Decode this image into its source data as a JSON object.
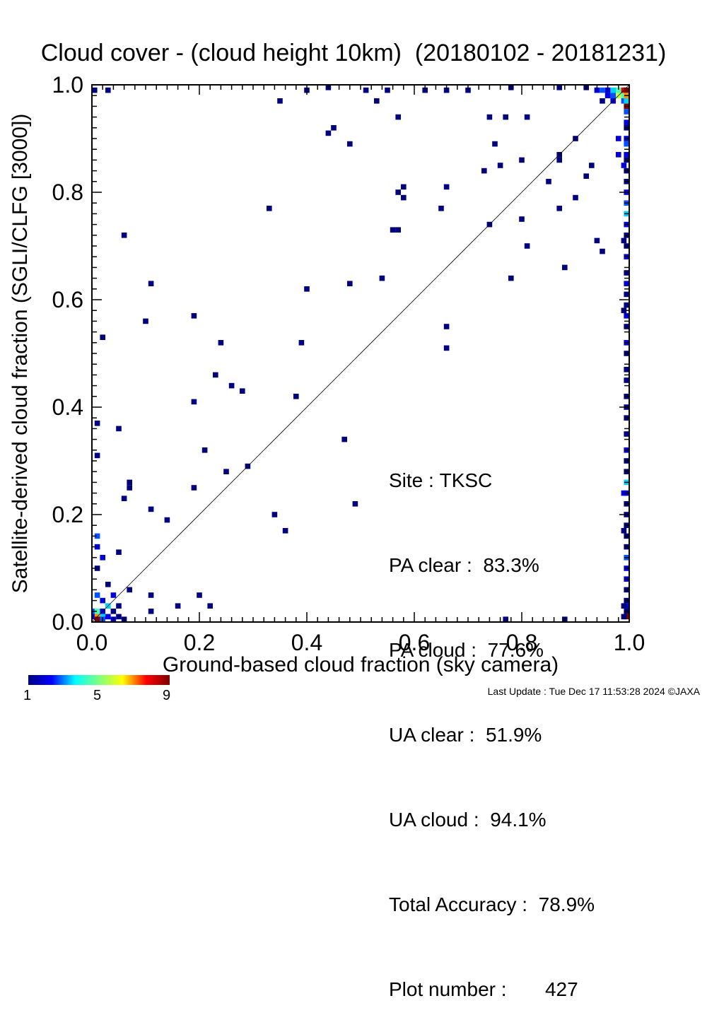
{
  "chart_data": {
    "type": "heatmap",
    "title": "Cloud cover - (cloud height 10km)  (20180102 - 20181231)",
    "xlabel": "Ground-based cloud fraction (sky camera)",
    "ylabel": "Satellite-derived cloud fraction (SGLI/CLFG [3000])",
    "xlim": [
      0.0,
      1.0
    ],
    "ylim": [
      0.0,
      1.0
    ],
    "x_ticks": [
      "0.0",
      "0.2",
      "0.4",
      "0.6",
      "0.8",
      "1.0"
    ],
    "y_ticks": [
      "0.0",
      "0.2",
      "0.4",
      "0.6",
      "0.8",
      "1.0"
    ],
    "reference_line": "1:1 diagonal",
    "colorbar": {
      "min": 1,
      "max": 9,
      "tick_labels": [
        "1",
        "5",
        "9"
      ]
    },
    "points": [
      [
        0.0,
        0.99,
        1
      ],
      [
        0.03,
        0.99,
        1
      ],
      [
        0.44,
        1.0,
        1
      ],
      [
        0.51,
        0.99,
        1
      ],
      [
        0.55,
        0.99,
        1
      ],
      [
        0.62,
        0.99,
        1
      ],
      [
        0.66,
        0.99,
        1
      ],
      [
        0.7,
        0.99,
        1
      ],
      [
        0.78,
        1.0,
        1
      ],
      [
        0.87,
        1.0,
        1
      ],
      [
        0.92,
        1.0,
        1
      ],
      [
        0.4,
        0.99,
        1
      ],
      [
        0.53,
        0.97,
        1
      ],
      [
        0.35,
        0.97,
        1
      ],
      [
        0.57,
        0.94,
        1
      ],
      [
        0.74,
        0.94,
        1
      ],
      [
        0.77,
        0.94,
        1
      ],
      [
        0.81,
        0.94,
        1
      ],
      [
        0.45,
        0.92,
        1
      ],
      [
        0.44,
        0.91,
        1
      ],
      [
        0.48,
        0.89,
        1
      ],
      [
        0.75,
        0.89,
        1
      ],
      [
        0.87,
        0.86,
        1
      ],
      [
        0.87,
        0.87,
        1
      ],
      [
        0.8,
        0.86,
        1
      ],
      [
        0.76,
        0.85,
        1
      ],
      [
        0.73,
        0.84,
        1
      ],
      [
        0.9,
        0.9,
        1
      ],
      [
        0.93,
        0.85,
        1
      ],
      [
        0.92,
        0.83,
        1
      ],
      [
        0.85,
        0.82,
        1
      ],
      [
        0.57,
        0.8,
        1
      ],
      [
        0.58,
        0.81,
        1
      ],
      [
        0.58,
        0.79,
        1
      ],
      [
        0.66,
        0.81,
        1
      ],
      [
        0.65,
        0.77,
        1
      ],
      [
        0.9,
        0.79,
        1
      ],
      [
        0.87,
        0.77,
        1
      ],
      [
        0.33,
        0.77,
        1
      ],
      [
        0.56,
        0.73,
        1
      ],
      [
        0.57,
        0.73,
        1
      ],
      [
        0.74,
        0.74,
        1
      ],
      [
        0.8,
        0.75,
        1
      ],
      [
        0.06,
        0.72,
        1
      ],
      [
        0.81,
        0.7,
        1
      ],
      [
        0.94,
        0.71,
        1
      ],
      [
        0.95,
        0.69,
        1
      ],
      [
        0.88,
        0.66,
        1
      ],
      [
        0.11,
        0.63,
        1
      ],
      [
        0.48,
        0.63,
        1
      ],
      [
        0.78,
        0.64,
        1
      ],
      [
        0.54,
        0.64,
        1
      ],
      [
        0.4,
        0.62,
        1
      ],
      [
        0.19,
        0.57,
        1
      ],
      [
        0.1,
        0.56,
        1
      ],
      [
        0.66,
        0.55,
        1
      ],
      [
        0.02,
        0.53,
        1
      ],
      [
        0.24,
        0.52,
        1
      ],
      [
        0.39,
        0.52,
        1
      ],
      [
        0.66,
        0.51,
        1
      ],
      [
        0.23,
        0.46,
        1
      ],
      [
        0.26,
        0.44,
        1
      ],
      [
        0.28,
        0.43,
        1
      ],
      [
        0.38,
        0.42,
        1
      ],
      [
        0.19,
        0.41,
        1
      ],
      [
        0.01,
        0.37,
        1
      ],
      [
        0.05,
        0.36,
        1
      ],
      [
        0.47,
        0.34,
        1
      ],
      [
        0.21,
        0.32,
        1
      ],
      [
        0.01,
        0.31,
        1
      ],
      [
        0.29,
        0.29,
        1
      ],
      [
        0.25,
        0.28,
        1
      ],
      [
        0.07,
        0.26,
        1
      ],
      [
        0.07,
        0.25,
        1
      ],
      [
        0.19,
        0.25,
        1
      ],
      [
        0.06,
        0.23,
        1
      ],
      [
        0.49,
        0.22,
        1
      ],
      [
        0.11,
        0.21,
        1
      ],
      [
        0.34,
        0.2,
        1
      ],
      [
        0.14,
        0.19,
        1
      ],
      [
        0.36,
        0.17,
        1
      ],
      [
        0.01,
        0.16,
        3
      ],
      [
        0.01,
        0.14,
        2
      ],
      [
        0.05,
        0.13,
        1
      ],
      [
        0.02,
        0.12,
        2
      ],
      [
        0.01,
        0.1,
        1
      ],
      [
        0.03,
        0.07,
        1
      ],
      [
        0.07,
        0.06,
        1
      ],
      [
        0.11,
        0.05,
        1
      ],
      [
        0.2,
        0.05,
        1
      ],
      [
        0.01,
        0.05,
        3
      ],
      [
        0.04,
        0.05,
        2
      ],
      [
        0.16,
        0.03,
        1
      ],
      [
        0.22,
        0.03,
        1
      ],
      [
        0.11,
        0.02,
        1
      ],
      [
        0.02,
        0.04,
        2
      ],
      [
        0.03,
        0.03,
        4
      ],
      [
        0.05,
        0.03,
        1
      ],
      [
        0.0,
        0.02,
        3
      ],
      [
        0.01,
        0.02,
        5
      ],
      [
        0.02,
        0.02,
        2
      ],
      [
        0.04,
        0.02,
        1
      ],
      [
        0.0,
        0.01,
        2
      ],
      [
        0.01,
        0.01,
        7
      ],
      [
        0.02,
        0.01,
        4
      ],
      [
        0.03,
        0.01,
        2
      ],
      [
        0.05,
        0.01,
        1
      ],
      [
        0.01,
        0.0,
        9
      ],
      [
        0.02,
        0.0,
        3
      ],
      [
        0.04,
        0.0,
        2
      ],
      [
        0.06,
        0.0,
        1
      ],
      [
        0.77,
        0.0,
        1
      ],
      [
        0.88,
        0.0,
        1
      ],
      [
        0.94,
        0.99,
        2
      ],
      [
        0.95,
        0.99,
        3
      ],
      [
        0.96,
        0.99,
        2
      ],
      [
        0.97,
        0.99,
        4
      ],
      [
        0.98,
        0.99,
        5
      ],
      [
        0.99,
        0.99,
        8
      ],
      [
        1.0,
        0.99,
        9
      ],
      [
        0.96,
        0.98,
        2
      ],
      [
        0.97,
        0.98,
        3
      ],
      [
        0.98,
        0.98,
        6
      ],
      [
        0.99,
        0.98,
        5
      ],
      [
        1.0,
        0.98,
        7
      ],
      [
        0.97,
        0.97,
        2
      ],
      [
        0.99,
        0.97,
        3
      ],
      [
        1.0,
        0.97,
        4
      ],
      [
        1.0,
        0.96,
        9
      ],
      [
        1.0,
        0.95,
        3
      ],
      [
        1.0,
        0.93,
        2
      ],
      [
        1.0,
        0.92,
        1
      ],
      [
        1.0,
        0.9,
        2
      ],
      [
        1.0,
        0.89,
        3
      ],
      [
        1.0,
        0.87,
        2
      ],
      [
        1.0,
        0.86,
        1
      ],
      [
        0.99,
        0.85,
        2
      ],
      [
        1.0,
        0.84,
        1
      ],
      [
        1.0,
        0.82,
        1
      ],
      [
        1.0,
        0.8,
        2
      ],
      [
        1.0,
        0.78,
        3
      ],
      [
        1.0,
        0.76,
        4
      ],
      [
        1.0,
        0.74,
        2
      ],
      [
        1.0,
        0.72,
        1
      ],
      [
        1.0,
        0.7,
        1
      ],
      [
        1.0,
        0.68,
        2
      ],
      [
        1.0,
        0.65,
        1
      ],
      [
        1.0,
        0.63,
        2
      ],
      [
        1.0,
        0.61,
        1
      ],
      [
        1.0,
        0.59,
        1
      ],
      [
        1.0,
        0.57,
        2
      ],
      [
        1.0,
        0.55,
        1
      ],
      [
        1.0,
        0.52,
        2
      ],
      [
        1.0,
        0.5,
        1
      ],
      [
        1.0,
        0.47,
        1
      ],
      [
        1.0,
        0.45,
        1
      ],
      [
        1.0,
        0.42,
        1
      ],
      [
        1.0,
        0.4,
        1
      ],
      [
        1.0,
        0.38,
        1
      ],
      [
        1.0,
        0.35,
        1
      ],
      [
        1.0,
        0.32,
        2
      ],
      [
        1.0,
        0.3,
        1
      ],
      [
        1.0,
        0.28,
        1
      ],
      [
        1.0,
        0.26,
        4
      ],
      [
        1.0,
        0.24,
        2
      ],
      [
        1.0,
        0.22,
        1
      ],
      [
        1.0,
        0.2,
        1
      ],
      [
        1.0,
        0.18,
        1
      ],
      [
        1.0,
        0.16,
        1
      ],
      [
        1.0,
        0.14,
        1
      ],
      [
        1.0,
        0.12,
        3
      ],
      [
        1.0,
        0.1,
        2
      ],
      [
        1.0,
        0.08,
        2
      ],
      [
        1.0,
        0.06,
        1
      ],
      [
        1.0,
        0.04,
        1
      ],
      [
        1.0,
        0.03,
        2
      ],
      [
        1.0,
        0.02,
        1
      ],
      [
        1.0,
        0.01,
        9
      ],
      [
        0.99,
        0.03,
        1
      ],
      [
        0.99,
        0.01,
        1
      ],
      [
        0.99,
        0.24,
        2
      ],
      [
        0.99,
        0.17,
        1
      ],
      [
        0.99,
        0.71,
        1
      ],
      [
        0.98,
        0.9,
        2
      ],
      [
        0.98,
        0.87,
        2
      ],
      [
        0.99,
        0.58,
        1
      ],
      [
        0.95,
        0.97,
        1
      ]
    ]
  },
  "stats": [
    {
      "label": "Site : ",
      "value": "TKSC"
    },
    {
      "label": "PA clear :  ",
      "value": "83.3%"
    },
    {
      "label": "PA cloud :  ",
      "value": "77.6%"
    },
    {
      "label": "UA clear :  ",
      "value": "51.9%"
    },
    {
      "label": "UA cloud :  ",
      "value": "94.1%"
    },
    {
      "label": "Total Accuracy :  ",
      "value": "78.9%"
    },
    {
      "label": "Plot number :       ",
      "value": "427"
    }
  ],
  "footer": "Last Update : Tue Dec 17 11:53:28 2024  ©JAXA"
}
